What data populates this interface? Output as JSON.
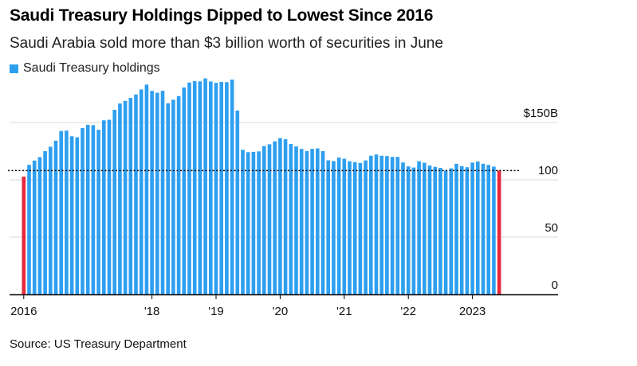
{
  "header": {
    "title": "Saudi Treasury Holdings Dipped to Lowest Since 2016",
    "subtitle": "Saudi Arabia sold more than $3 billion worth of securities in June"
  },
  "legend": {
    "label": "Saudi Treasury holdings",
    "color": "#2e9ff0"
  },
  "footer": {
    "source": "Source: US Treasury Department"
  },
  "colors": {
    "bar": "#2e9ff0",
    "highlight": "#e8283d",
    "grid": "#d8d8d8",
    "axis": "#000000",
    "reference": "#000000"
  },
  "chart_data": {
    "type": "bar",
    "title": "Saudi Treasury Holdings Dipped to Lowest Since 2016",
    "subtitle": "Saudi Arabia sold more than $3 billion worth of securities in June",
    "xlabel": "",
    "ylabel": "",
    "ylim": [
      0,
      200
    ],
    "yticks": [
      {
        "value": 0,
        "label": "0"
      },
      {
        "value": 50,
        "label": "50"
      },
      {
        "value": 100,
        "label": "100"
      },
      {
        "value": 150,
        "label": "$150B"
      }
    ],
    "xticks": [
      {
        "index": 0,
        "label": "2016"
      },
      {
        "index": 24,
        "label": "'18"
      },
      {
        "index": 36,
        "label": "'19"
      },
      {
        "index": 48,
        "label": "'20"
      },
      {
        "index": 60,
        "label": "'21"
      },
      {
        "index": 72,
        "label": "'22"
      },
      {
        "index": 84,
        "label": "2023"
      }
    ],
    "start": "2016-01",
    "end": "2023-06",
    "reference_line": 108.1,
    "highlighted": [
      0,
      89
    ],
    "series": [
      {
        "name": "Saudi Treasury holdings",
        "values": [
          102.8,
          113.1,
          116.8,
          119.8,
          125.0,
          128.9,
          134.1,
          142.6,
          143.0,
          138.0,
          137.1,
          145.1,
          148.0,
          147.7,
          143.7,
          151.9,
          152.4,
          161.1,
          166.6,
          168.9,
          171.5,
          174.5,
          178.9,
          183.1,
          177.6,
          176.0,
          177.7,
          166.8,
          169.9,
          173.1,
          180.6,
          184.9,
          186.1,
          185.9,
          188.5,
          185.8,
          184.6,
          185.4,
          185.2,
          187.5,
          160.4,
          126.2,
          124.1,
          124.4,
          124.8,
          129.4,
          131.0,
          133.6,
          136.4,
          135.4,
          131.2,
          129.2,
          127.0,
          125.1,
          127.0,
          127.4,
          125.1,
          117.0,
          116.3,
          119.4,
          118.4,
          116.2,
          115.4,
          114.7,
          116.9,
          121.0,
          122.1,
          121.0,
          120.7,
          120.0,
          120.0,
          115.1,
          111.7,
          110.7,
          116.2,
          114.9,
          112.5,
          111.3,
          110.4,
          108.1,
          110.0,
          114.0,
          112.0,
          111.0,
          115.0,
          116.0,
          114.0,
          113.0,
          111.5,
          108.1
        ]
      }
    ]
  }
}
